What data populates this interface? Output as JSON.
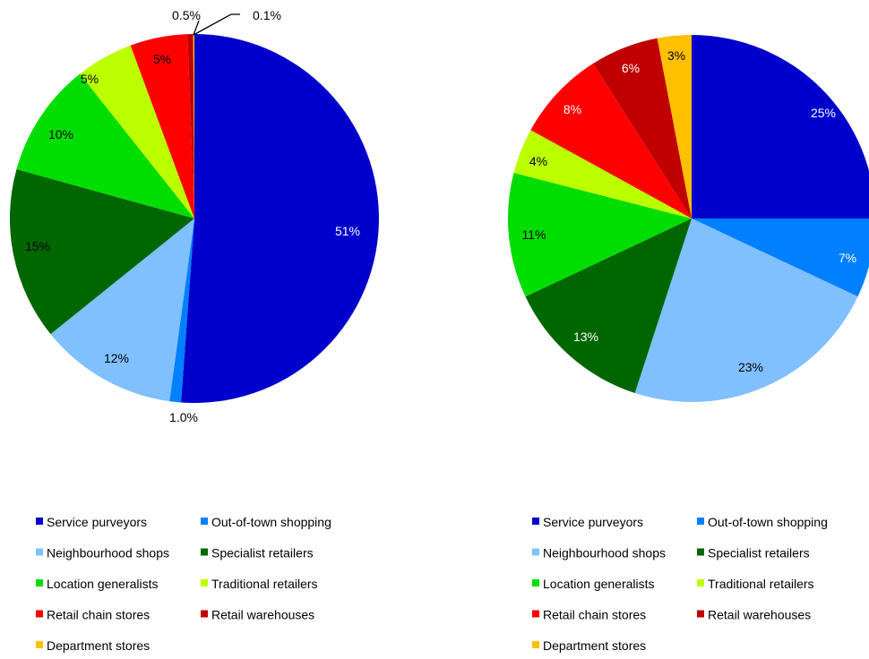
{
  "chart_data": [
    {
      "type": "pie",
      "categories": [
        "Service purveyors",
        "Out-of-town shopping",
        "Neighbourhood shops",
        "Specialist retailers",
        "Location generalists",
        "Traditional retailers",
        "Retail chain stores",
        "Retail warehouses",
        "Department stores"
      ],
      "values": [
        50.9,
        1.0,
        12.0,
        15.0,
        10.0,
        5.0,
        5.0,
        0.5,
        0.1
      ],
      "data_labels": [
        "51%",
        "1.0%",
        "12%",
        "15%",
        "10%",
        "5%",
        "5%",
        "0.5%",
        "0.1%"
      ],
      "colors": [
        "#0000cc",
        "#0080ff",
        "#80c0ff",
        "#006600",
        "#00dd00",
        "#bbff00",
        "#ff0000",
        "#c00000",
        "#ffc000"
      ],
      "legend_position": "bottom"
    },
    {
      "type": "pie",
      "categories": [
        "Service purveyors",
        "Out-of-town shopping",
        "Neighbourhood shops",
        "Specialist retailers",
        "Location generalists",
        "Traditional retailers",
        "Retail chain stores",
        "Retail warehouses",
        "Department stores"
      ],
      "values": [
        25,
        7,
        23,
        13,
        11,
        4,
        8,
        6,
        3
      ],
      "data_labels": [
        "25%",
        "7%",
        "23%",
        "13%",
        "11%",
        "4%",
        "8%",
        "6%",
        "3%"
      ],
      "colors": [
        "#0000cc",
        "#0080ff",
        "#80c0ff",
        "#006600",
        "#00dd00",
        "#bbff00",
        "#ff0000",
        "#c00000",
        "#ffc000"
      ],
      "legend_position": "bottom"
    }
  ]
}
